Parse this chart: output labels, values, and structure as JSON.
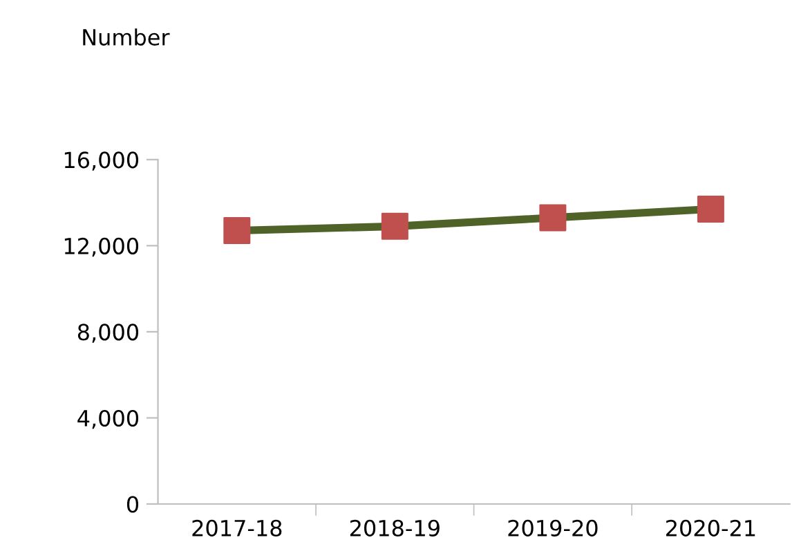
{
  "chart_data": {
    "type": "line",
    "ylabel": "Number",
    "categories": [
      "2017-18",
      "2018-19",
      "2019-20",
      "2020-21"
    ],
    "series": [
      {
        "color": "#4f6228",
        "colors": [
          "#c0504d",
          "#c0504d",
          "#c0504d",
          "#c0504d"
        ],
        "values": [
          12700,
          12900,
          13300,
          13700
        ]
      }
    ],
    "marker": "square",
    "ylim": [
      0,
      16000
    ],
    "yticks": [
      {
        "value": 0,
        "label": "0"
      },
      {
        "value": 4000,
        "label": "4,000"
      },
      {
        "value": 8000,
        "label": "8,000"
      },
      {
        "value": 12000,
        "label": "12,000"
      },
      {
        "value": 16000,
        "label": "16,000"
      }
    ],
    "grid": false,
    "legend": false
  }
}
